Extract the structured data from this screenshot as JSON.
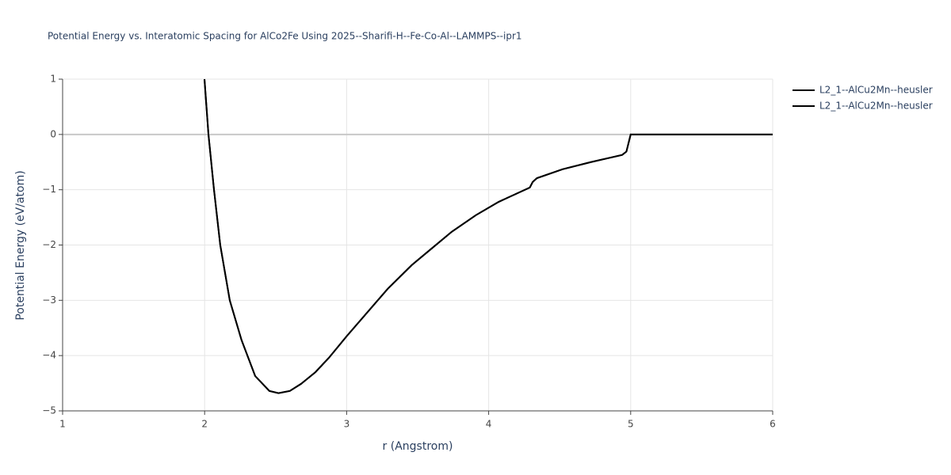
{
  "chart_data": {
    "type": "line",
    "title": "Potential Energy vs. Interatomic Spacing for AlCo2Fe Using 2025--Sharifi-H--Fe-Co-Al--LAMMPS--ipr1",
    "x_label": "r (Angstrom)",
    "y_label": "Potential Energy (eV/atom)",
    "xlim": [
      1,
      6
    ],
    "ylim": [
      -5,
      1
    ],
    "xticks": [
      1,
      2,
      3,
      4,
      5,
      6
    ],
    "yticks": [
      {
        "value": -5,
        "label": "−5"
      },
      {
        "value": -4,
        "label": "−4"
      },
      {
        "value": -3,
        "label": "−3"
      },
      {
        "value": -2,
        "label": "−2"
      },
      {
        "value": -1,
        "label": "−1"
      },
      0,
      1
    ],
    "grid": true,
    "series": [
      {
        "name": "L2_1--AlCu2Mn--heusler",
        "color": "#000000",
        "x": [
          1.999,
          2.027,
          2.066,
          2.11,
          2.177,
          2.26,
          2.356,
          2.456,
          2.52,
          2.6,
          2.68,
          2.78,
          2.875,
          3.0,
          3.29,
          3.46,
          3.6,
          3.74,
          3.91,
          4.07,
          4.29,
          4.31,
          4.34,
          4.52,
          4.72,
          4.94,
          4.97,
          5.0,
          6.0
        ],
        "values": [
          1,
          0,
          -1,
          -2,
          -3,
          -3.72,
          -4.37,
          -4.64,
          -4.68,
          -4.64,
          -4.51,
          -4.3,
          -4.04,
          -3.65,
          -2.79,
          -2.36,
          -2.06,
          -1.76,
          -1.46,
          -1.22,
          -0.96,
          -0.86,
          -0.79,
          -0.63,
          -0.5,
          -0.37,
          -0.31,
          0,
          0
        ]
      },
      {
        "name": "L2_1--AlCu2Mn--heusler",
        "color": "#000000",
        "x": [
          1.999,
          2.027,
          2.066,
          2.11,
          2.177,
          2.26,
          2.356,
          2.456,
          2.52,
          2.6,
          2.68,
          2.78,
          2.875,
          3.0,
          3.29,
          3.46,
          3.6,
          3.74,
          3.91,
          4.07,
          4.29,
          4.31,
          4.34,
          4.52,
          4.72,
          4.94,
          4.97,
          5.0,
          6.0
        ],
        "values": [
          1,
          0,
          -1,
          -2,
          -3,
          -3.72,
          -4.37,
          -4.64,
          -4.68,
          -4.64,
          -4.51,
          -4.3,
          -4.04,
          -3.65,
          -2.79,
          -2.36,
          -2.06,
          -1.76,
          -1.46,
          -1.22,
          -0.96,
          -0.86,
          -0.79,
          -0.63,
          -0.5,
          -0.37,
          -0.31,
          0,
          0
        ]
      }
    ]
  }
}
